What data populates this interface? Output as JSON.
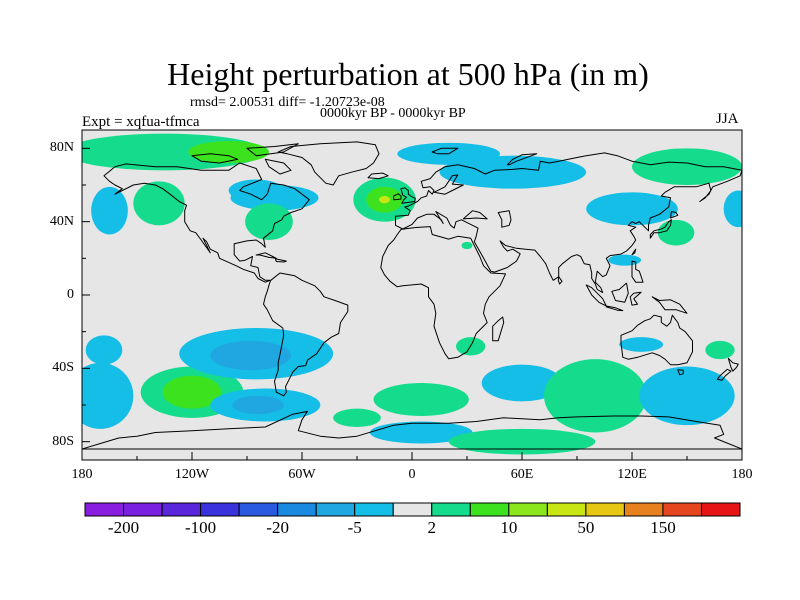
{
  "title": "Height perturbation at 500 hPa (in m)",
  "stats_line": "rmsd= 2.00531  diff= -1.20723e-08",
  "period_line": "0000kyr BP - 0000kyr BP",
  "expt_label": "Expt = xqfua-tfmca",
  "season_label": "JJA",
  "axes": {
    "y_ticks": [
      {
        "label": "80N",
        "lat": 80
      },
      {
        "label": "40N",
        "lat": 40
      },
      {
        "label": "0",
        "lat": 0
      },
      {
        "label": "40S",
        "lat": -40
      },
      {
        "label": "80S",
        "lat": -80
      }
    ],
    "x_ticks": [
      {
        "label": "180",
        "lon": -180
      },
      {
        "label": "120W",
        "lon": -120
      },
      {
        "label": "60W",
        "lon": -60
      },
      {
        "label": "0",
        "lon": 0
      },
      {
        "label": "60E",
        "lon": 60
      },
      {
        "label": "120E",
        "lon": 120
      },
      {
        "label": "180",
        "lon": 180
      }
    ],
    "lon_range": [
      -180,
      180
    ],
    "lat_range": [
      -90,
      90
    ]
  },
  "colorbar": {
    "colors": [
      "#8a1ee0",
      "#7a20e0",
      "#5a26dc",
      "#3a32dc",
      "#2a5ae0",
      "#1a8ae0",
      "#20a6e0",
      "#14bee6",
      "#e6e6e6",
      "#14dc8c",
      "#3ce21e",
      "#8ce61e",
      "#c8e614",
      "#e6c814",
      "#e6821e",
      "#e6461e",
      "#e61414"
    ],
    "labels": [
      {
        "text": "-200",
        "boundary": 1
      },
      {
        "text": "-100",
        "boundary": 3
      },
      {
        "text": "-20",
        "boundary": 5
      },
      {
        "text": "-5",
        "boundary": 7
      },
      {
        "text": "2",
        "boundary": 9
      },
      {
        "text": "10",
        "boundary": 11
      },
      {
        "text": "50",
        "boundary": 13
      },
      {
        "text": "150",
        "boundary": 15
      }
    ]
  },
  "field": {
    "background": "#e6e6e6",
    "blobs": [
      {
        "lon": -120,
        "lat": -53,
        "rx": 28,
        "ry": 14,
        "color": "#14dc8c"
      },
      {
        "lon": -120,
        "lat": -53,
        "rx": 16,
        "ry": 9,
        "color": "#3ce21e"
      },
      {
        "lon": -85,
        "lat": -32,
        "rx": 42,
        "ry": 14,
        "color": "#14bee6"
      },
      {
        "lon": -88,
        "lat": -33,
        "rx": 22,
        "ry": 8,
        "color": "#20a6e0"
      },
      {
        "lon": -80,
        "lat": -60,
        "rx": 30,
        "ry": 9,
        "color": "#14bee6"
      },
      {
        "lon": -84,
        "lat": -60,
        "rx": 14,
        "ry": 5,
        "color": "#20a6e0"
      },
      {
        "lon": -170,
        "lat": -55,
        "rx": 18,
        "ry": 18,
        "color": "#14bee6"
      },
      {
        "lon": -168,
        "lat": -30,
        "rx": 10,
        "ry": 8,
        "color": "#14bee6"
      },
      {
        "lon": -30,
        "lat": -67,
        "rx": 13,
        "ry": 5,
        "color": "#14dc8c"
      },
      {
        "lon": 5,
        "lat": -57,
        "rx": 26,
        "ry": 9,
        "color": "#14dc8c"
      },
      {
        "lon": 5,
        "lat": -75,
        "rx": 28,
        "ry": 6,
        "color": "#14bee6"
      },
      {
        "lon": 60,
        "lat": -48,
        "rx": 22,
        "ry": 10,
        "color": "#14bee6"
      },
      {
        "lon": 60,
        "lat": -80,
        "rx": 40,
        "ry": 7,
        "color": "#14dc8c"
      },
      {
        "lon": 100,
        "lat": -55,
        "rx": 28,
        "ry": 20,
        "color": "#14dc8c"
      },
      {
        "lon": 150,
        "lat": -55,
        "rx": 26,
        "ry": 16,
        "color": "#14bee6"
      },
      {
        "lon": 168,
        "lat": -30,
        "rx": 8,
        "ry": 5,
        "color": "#14dc8c"
      },
      {
        "lon": 32,
        "lat": -28,
        "rx": 8,
        "ry": 5,
        "color": "#14dc8c"
      },
      {
        "lon": 125,
        "lat": -27,
        "rx": 12,
        "ry": 4,
        "color": "#14bee6"
      },
      {
        "lon": -135,
        "lat": 78,
        "rx": 55,
        "ry": 10,
        "color": "#14dc8c"
      },
      {
        "lon": -100,
        "lat": 78,
        "rx": 22,
        "ry": 6,
        "color": "#3ce21e"
      },
      {
        "lon": -75,
        "lat": 53,
        "rx": 24,
        "ry": 7,
        "color": "#14bee6"
      },
      {
        "lon": -78,
        "lat": 40,
        "rx": 13,
        "ry": 10,
        "color": "#14dc8c"
      },
      {
        "lon": -85,
        "lat": 57,
        "rx": 15,
        "ry": 6,
        "color": "#14bee6"
      },
      {
        "lon": -138,
        "lat": 50,
        "rx": 14,
        "ry": 12,
        "color": "#14dc8c"
      },
      {
        "lon": -165,
        "lat": 46,
        "rx": 10,
        "ry": 13,
        "color": "#14bee6"
      },
      {
        "lon": -15,
        "lat": 52,
        "rx": 17,
        "ry": 12,
        "color": "#14dc8c"
      },
      {
        "lon": -15,
        "lat": 52,
        "rx": 10,
        "ry": 7,
        "color": "#3ce21e"
      },
      {
        "lon": -15,
        "lat": 52,
        "rx": 3,
        "ry": 2,
        "color": "#c8e614"
      },
      {
        "lon": 20,
        "lat": 77,
        "rx": 28,
        "ry": 6,
        "color": "#14bee6"
      },
      {
        "lon": 55,
        "lat": 67,
        "rx": 40,
        "ry": 9,
        "color": "#14bee6"
      },
      {
        "lon": 150,
        "lat": 70,
        "rx": 30,
        "ry": 10,
        "color": "#14dc8c"
      },
      {
        "lon": 120,
        "lat": 47,
        "rx": 25,
        "ry": 9,
        "color": "#14bee6"
      },
      {
        "lon": 144,
        "lat": 34,
        "rx": 10,
        "ry": 7,
        "color": "#14dc8c"
      },
      {
        "lon": 178,
        "lat": 47,
        "rx": 8,
        "ry": 10,
        "color": "#14bee6"
      },
      {
        "lon": 116,
        "lat": 19,
        "rx": 9,
        "ry": 3,
        "color": "#14bee6"
      },
      {
        "lon": 30,
        "lat": 27,
        "rx": 3,
        "ry": 2,
        "color": "#14dc8c"
      }
    ]
  }
}
